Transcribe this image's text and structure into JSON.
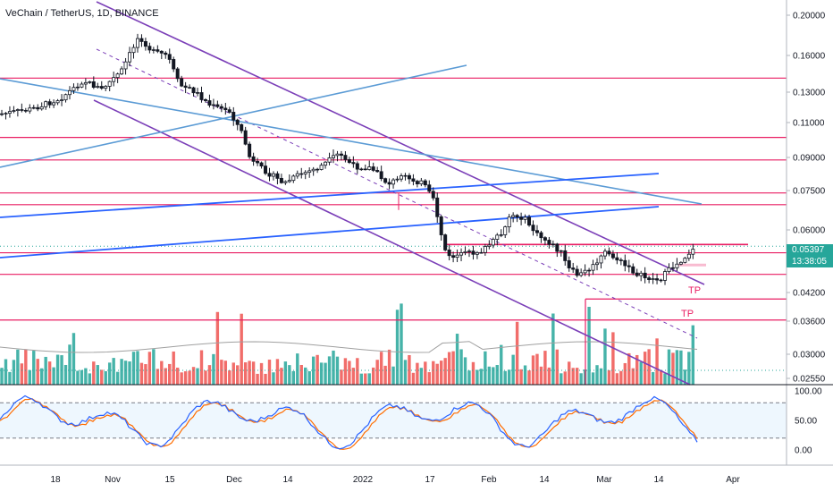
{
  "chart_title": "VeChain / TetherUS, 1D, BINANCE",
  "last_price_label": "0.05397",
  "countdown_label": "13:38:05",
  "tp_label": "TP",
  "colors": {
    "up": "#26a69a",
    "down": "#ef5350",
    "channel": "#7b3fb8",
    "light_blue": "#5b9bd5",
    "blue": "#2962ff",
    "horizontal": "#e91e63",
    "stoch_k": "#2962ff",
    "stoch_d": "#ff6d00",
    "volume_ma": "#a0a0a0"
  },
  "chart_data": {
    "type": "candlestick",
    "title": "VeChain / TetherUS, 1D, BINANCE",
    "scale": "log",
    "ylim": [
      0.0255,
      0.2
    ],
    "y_ticks": [
      "0.20000",
      "0.16000",
      "0.13000",
      "0.11000",
      "0.09000",
      "0.07500",
      "0.06000",
      "0.04200",
      "0.03600",
      "0.03000",
      "0.02550"
    ],
    "x_ticks": [
      "18",
      "Nov",
      "15",
      "Dec",
      "14",
      "2022",
      "17",
      "Feb",
      "14",
      "Mar",
      "14",
      "Apr"
    ],
    "last_price": 0.05397,
    "horizontal_levels": [
      0.14,
      0.1,
      0.088,
      0.073,
      0.0683,
      0.0545,
      0.052,
      0.046,
      0.04,
      0.0355
    ],
    "tp_levels": [
      0.044,
      0.0385
    ],
    "stochastic_ticks": [
      "100.00",
      "50.00",
      "0.00"
    ],
    "stochastic_band": [
      20,
      80
    ]
  }
}
